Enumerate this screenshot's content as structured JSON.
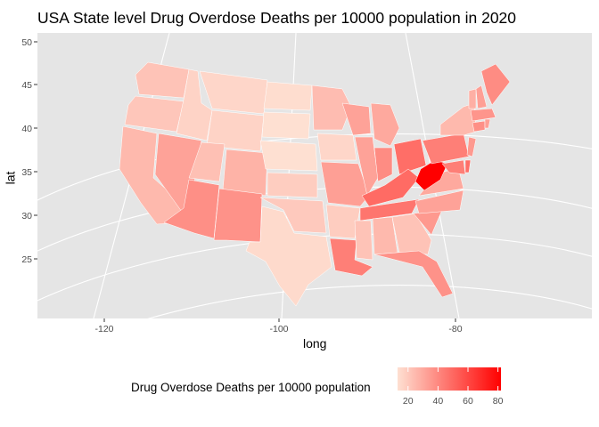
{
  "chart_data": {
    "type": "choropleth",
    "title": "USA State level Drug Overdose Deaths per 10000 population in 2020",
    "xlabel": "long",
    "ylabel": "lat",
    "x_ticks": [
      "-120",
      "-100",
      "-80"
    ],
    "y_ticks": [
      "50",
      "45",
      "40",
      "35",
      "30",
      "25"
    ],
    "legend": {
      "title": "Drug Overdose Deaths per 10000 population",
      "ticks": [
        "20",
        "40",
        "60",
        "80"
      ],
      "range": [
        13,
        82
      ],
      "low_color": "#fee0d2",
      "high_color": "#ff0000",
      "placement": "bottom"
    },
    "panel_background": "#e5e5e5",
    "grid": true,
    "regions": [
      {
        "name": "WA",
        "value": 22
      },
      {
        "name": "OR",
        "value": 21
      },
      {
        "name": "CA",
        "value": 25
      },
      {
        "name": "NV",
        "value": 32
      },
      {
        "name": "ID",
        "value": 17
      },
      {
        "name": "MT",
        "value": 16
      },
      {
        "name": "WY",
        "value": 17
      },
      {
        "name": "UT",
        "value": 23
      },
      {
        "name": "AZ",
        "value": 38
      },
      {
        "name": "CO",
        "value": 27
      },
      {
        "name": "NM",
        "value": 37
      },
      {
        "name": "ND",
        "value": 14
      },
      {
        "name": "SD",
        "value": 13
      },
      {
        "name": "NE",
        "value": 13
      },
      {
        "name": "KS",
        "value": 19
      },
      {
        "name": "OK",
        "value": 20
      },
      {
        "name": "TX",
        "value": 15
      },
      {
        "name": "MN",
        "value": 24
      },
      {
        "name": "IA",
        "value": 16
      },
      {
        "name": "MO",
        "value": 33
      },
      {
        "name": "AR",
        "value": 19
      },
      {
        "name": "LA",
        "value": 43
      },
      {
        "name": "WI",
        "value": 32
      },
      {
        "name": "IL",
        "value": 32
      },
      {
        "name": "MI",
        "value": 30
      },
      {
        "name": "IN",
        "value": 39
      },
      {
        "name": "OH",
        "value": 48
      },
      {
        "name": "KY",
        "value": 49
      },
      {
        "name": "TN",
        "value": 46
      },
      {
        "name": "MS",
        "value": 22
      },
      {
        "name": "AL",
        "value": 25
      },
      {
        "name": "GA",
        "value": 22
      },
      {
        "name": "FL",
        "value": 37
      },
      {
        "name": "SC",
        "value": 35
      },
      {
        "name": "NC",
        "value": 32
      },
      {
        "name": "VA",
        "value": 30
      },
      {
        "name": "WV",
        "value": 82
      },
      {
        "name": "PA",
        "value": 43
      },
      {
        "name": "NY",
        "value": 25
      },
      {
        "name": "MD",
        "value": 43
      },
      {
        "name": "DE",
        "value": 48
      },
      {
        "name": "NJ",
        "value": 35
      },
      {
        "name": "CT",
        "value": 38
      },
      {
        "name": "RI",
        "value": 33
      },
      {
        "name": "MA",
        "value": 36
      },
      {
        "name": "VT",
        "value": 28
      },
      {
        "name": "NH",
        "value": 33
      },
      {
        "name": "ME",
        "value": 39
      }
    ]
  }
}
